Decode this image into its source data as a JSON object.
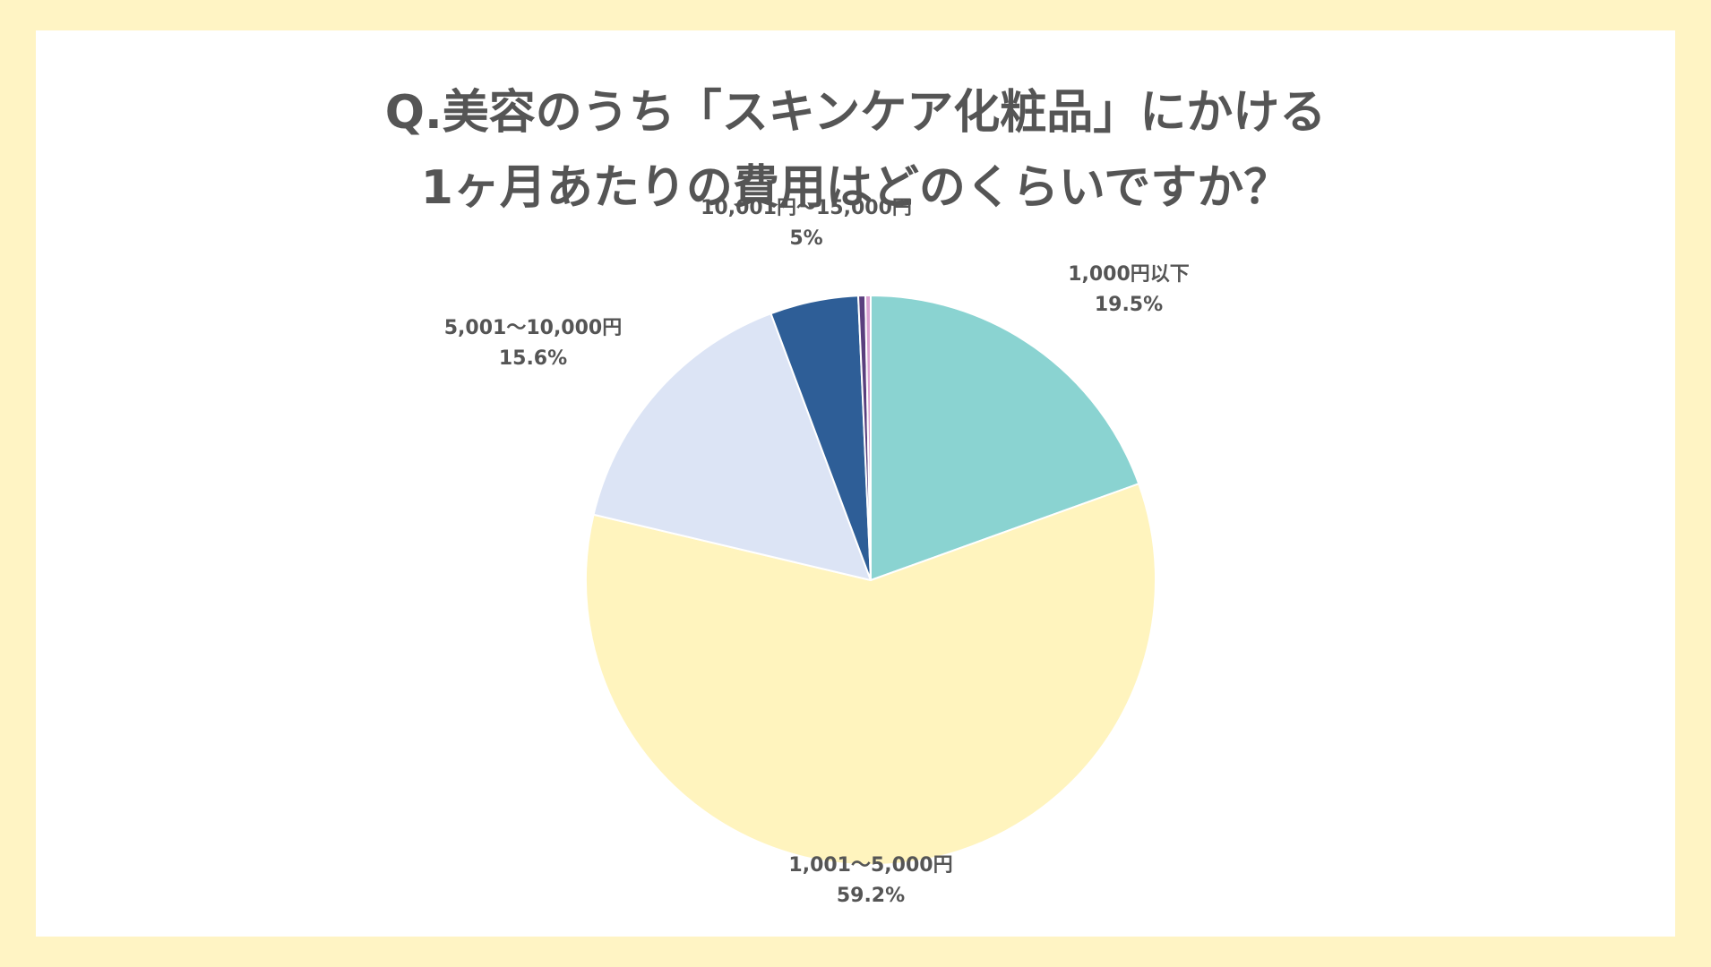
{
  "chart_data": {
    "type": "pie",
    "title_lines": [
      "Q.美容のうち「スキンケア化粧品」にかける",
      "1ヶ月あたりの費用はどのくらいですか？"
    ],
    "slices": [
      {
        "label": "1,000円以下",
        "value": 19.5,
        "value_label": "19.5%",
        "color": "#8AD3D1"
      },
      {
        "label": "1,001〜5,000円",
        "value": 59.2,
        "value_label": "59.2%",
        "color": "#FFF4BE"
      },
      {
        "label": "5,001〜10,000円",
        "value": 15.6,
        "value_label": "15.6%",
        "color": "#DCE4F5"
      },
      {
        "label": "10,001円〜15,000円",
        "value": 5,
        "value_label": "5%",
        "color": "#2E5E97"
      },
      {
        "label": "",
        "value": 0.4,
        "value_label": "",
        "color": "#5A3F7E"
      },
      {
        "label": "",
        "value": 0.3,
        "value_label": "",
        "color": "#D9A0D0"
      }
    ],
    "start_angle": "12 o'clock",
    "direction": "clockwise",
    "legend": "none"
  },
  "colors": {
    "frame_background": "#FFF4C4",
    "card_background": "#FFFFFF",
    "text": "#555555",
    "slice_border": "#FFFFFF"
  }
}
